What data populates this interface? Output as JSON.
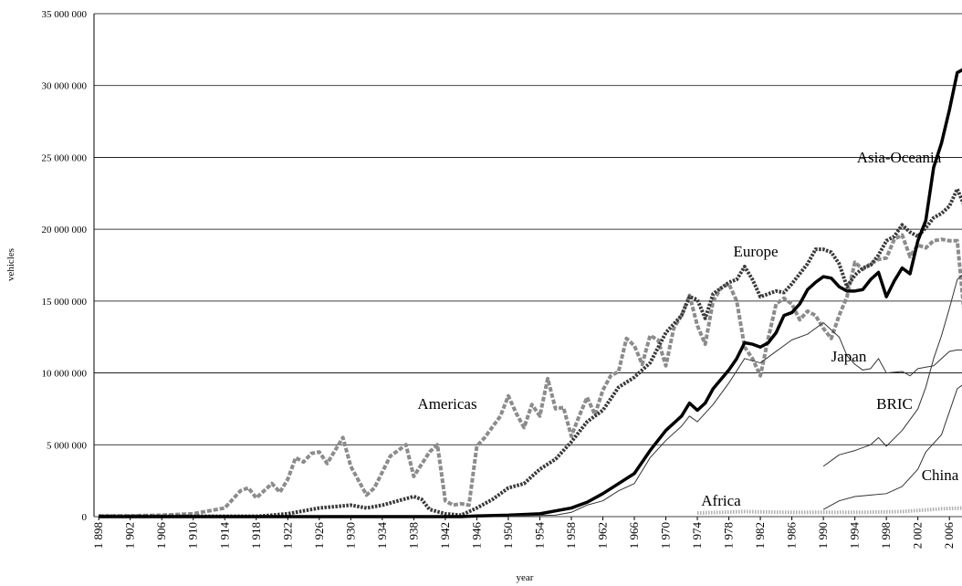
{
  "chart_data": {
    "type": "line",
    "xlabel": "year",
    "ylabel": "vehicles",
    "xlim": [
      1897.4,
      2007.6
    ],
    "ylim": [
      0,
      35000000
    ],
    "xticks": [
      {
        "value": 1898,
        "label": "1 898"
      },
      {
        "value": 1902,
        "label": "1 902"
      },
      {
        "value": 1906,
        "label": "1 906"
      },
      {
        "value": 1910,
        "label": "1 910"
      },
      {
        "value": 1914,
        "label": "1 914"
      },
      {
        "value": 1918,
        "label": "1 918"
      },
      {
        "value": 1922,
        "label": "1 922"
      },
      {
        "value": 1926,
        "label": "1 926"
      },
      {
        "value": 1930,
        "label": "1 930"
      },
      {
        "value": 1934,
        "label": "1 934"
      },
      {
        "value": 1938,
        "label": "1 938"
      },
      {
        "value": 1942,
        "label": "1 942"
      },
      {
        "value": 1946,
        "label": "1 946"
      },
      {
        "value": 1950,
        "label": "1 950"
      },
      {
        "value": 1954,
        "label": "1 954"
      },
      {
        "value": 1958,
        "label": "1 958"
      },
      {
        "value": 1962,
        "label": "1 962"
      },
      {
        "value": 1966,
        "label": "1 966"
      },
      {
        "value": 1970,
        "label": "1 970"
      },
      {
        "value": 1974,
        "label": "1 974"
      },
      {
        "value": 1978,
        "label": "1 978"
      },
      {
        "value": 1982,
        "label": "1 982"
      },
      {
        "value": 1986,
        "label": "1 986"
      },
      {
        "value": 1990,
        "label": "1 990"
      },
      {
        "value": 1994,
        "label": "1 994"
      },
      {
        "value": 1998,
        "label": "1 998"
      },
      {
        "value": 2002,
        "label": "2 002"
      },
      {
        "value": 2006,
        "label": "2 006"
      }
    ],
    "yticks": [
      {
        "value": 0,
        "label": "0"
      },
      {
        "value": 5000000,
        "label": "5 000 000"
      },
      {
        "value": 10000000,
        "label": "10 000 000"
      },
      {
        "value": 15000000,
        "label": "15 000 000"
      },
      {
        "value": 20000000,
        "label": "20 000 000"
      },
      {
        "value": 25000000,
        "label": "25 000 000"
      },
      {
        "value": 30000000,
        "label": "30 000 000"
      },
      {
        "value": 35000000,
        "label": "35 000 000"
      }
    ],
    "grid": true,
    "series": [
      {
        "name": "Americas",
        "color": "#8c8c8c",
        "width": 4,
        "x": [
          1898,
          1902,
          1906,
          1910,
          1912,
          1914,
          1916,
          1917,
          1918,
          1920,
          1921,
          1922,
          1923,
          1924,
          1925,
          1926,
          1927,
          1929,
          1930,
          1932,
          1933,
          1935,
          1937,
          1938,
          1940,
          1941,
          1942,
          1943,
          1944,
          1945,
          1946,
          1947,
          1949,
          1950,
          1951,
          1952,
          1953,
          1954,
          1955,
          1956,
          1957,
          1958,
          1959,
          1960,
          1961,
          1962,
          1963,
          1964,
          1965,
          1966,
          1967,
          1968,
          1969,
          1970,
          1971,
          1972,
          1973,
          1974,
          1975,
          1976,
          1977,
          1978,
          1979,
          1980,
          1981,
          1982,
          1983,
          1984,
          1985,
          1986,
          1987,
          1988,
          1989,
          1990,
          1991,
          1992,
          1993,
          1994,
          1995,
          1996,
          1997,
          1998,
          1999,
          2000,
          2001,
          2002,
          2003,
          2004,
          2005,
          2006,
          2007,
          2008
        ],
        "values": [
          50000,
          50000,
          100000,
          200000,
          400000,
          600000,
          1800000,
          2000000,
          1300000,
          2300000,
          1700000,
          2600000,
          4100000,
          3800000,
          4400000,
          4500000,
          3700000,
          5500000,
          3500000,
          1500000,
          2000000,
          4200000,
          5000000,
          2800000,
          4500000,
          5000000,
          1100000,
          800000,
          900000,
          800000,
          4900000,
          5500000,
          7000000,
          8400000,
          7200000,
          6200000,
          7800000,
          7000000,
          9600000,
          7500000,
          7600000,
          5600000,
          7000000,
          8300000,
          7100000,
          8800000,
          9800000,
          10100000,
          12400000,
          11900000,
          10600000,
          12600000,
          12300000,
          10500000,
          13100000,
          14000000,
          15400000,
          13300000,
          12000000,
          15000000,
          15900000,
          16200000,
          15000000,
          11800000,
          11000000,
          9800000,
          12400000,
          14800000,
          15200000,
          14800000,
          13700000,
          14300000,
          14000000,
          13100000,
          12400000,
          14000000,
          15300000,
          17700000,
          17200000,
          17600000,
          17900000,
          18000000,
          19300000,
          19600000,
          18100000,
          18900000,
          18700000,
          19200000,
          19300000,
          19200000,
          19200000,
          13500000
        ]
      },
      {
        "name": "Europe",
        "color": "#3a3a3a",
        "width": 4,
        "x": [
          1898,
          1918,
          1920,
          1922,
          1924,
          1926,
          1928,
          1930,
          1932,
          1934,
          1936,
          1938,
          1939,
          1940,
          1942,
          1944,
          1946,
          1948,
          1950,
          1952,
          1954,
          1956,
          1958,
          1960,
          1962,
          1964,
          1966,
          1968,
          1970,
          1972,
          1973,
          1974,
          1975,
          1976,
          1978,
          1979,
          1980,
          1981,
          1982,
          1984,
          1985,
          1986,
          1988,
          1989,
          1990,
          1991,
          1992,
          1993,
          1994,
          1995,
          1996,
          1997,
          1998,
          1999,
          2000,
          2001,
          2002,
          2003,
          2004,
          2005,
          2006,
          2007,
          2008
        ],
        "values": [
          20000,
          20000,
          100000,
          200000,
          400000,
          600000,
          700000,
          800000,
          600000,
          800000,
          1100000,
          1400000,
          1200000,
          500000,
          200000,
          100000,
          600000,
          1200000,
          2000000,
          2300000,
          3300000,
          4000000,
          5200000,
          6600000,
          7400000,
          9000000,
          9700000,
          10700000,
          12800000,
          14000000,
          15300000,
          15100000,
          13800000,
          15500000,
          16300000,
          16500000,
          17400000,
          16500000,
          15300000,
          15700000,
          15600000,
          16200000,
          17600000,
          18600000,
          18600000,
          18400000,
          17600000,
          16000000,
          16800000,
          17300000,
          17500000,
          18200000,
          19200000,
          19500000,
          20300000,
          19800000,
          19500000,
          20100000,
          20800000,
          21100000,
          21600000,
          22800000,
          21500000
        ]
      },
      {
        "name": "Asia-Oceania",
        "color": "#000000",
        "width": 3.5,
        "x": [
          1898,
          1944,
          1946,
          1950,
          1954,
          1956,
          1958,
          1960,
          1962,
          1964,
          1966,
          1968,
          1970,
          1972,
          1973,
          1974,
          1975,
          1976,
          1978,
          1979,
          1980,
          1981,
          1982,
          1983,
          1984,
          1985,
          1986,
          1987,
          1988,
          1989,
          1990,
          1991,
          1992,
          1993,
          1994,
          1995,
          1996,
          1997,
          1998,
          1999,
          2000,
          2001,
          2002,
          2003,
          2004,
          2005,
          2006,
          2007,
          2008
        ],
        "values": [
          0,
          0,
          50000,
          100000,
          200000,
          400000,
          600000,
          1000000,
          1600000,
          2300000,
          3000000,
          4600000,
          6000000,
          7000000,
          7900000,
          7400000,
          7900000,
          8900000,
          10200000,
          11000000,
          12100000,
          12000000,
          11800000,
          12100000,
          12800000,
          14000000,
          14200000,
          14800000,
          15800000,
          16300000,
          16700000,
          16600000,
          16000000,
          15700000,
          15700000,
          15800000,
          16500000,
          17000000,
          15300000,
          16400000,
          17300000,
          16900000,
          19200000,
          20600000,
          24300000,
          26000000,
          28300000,
          30900000,
          31200000
        ]
      },
      {
        "name": "Japan",
        "color": "#333333",
        "width": 1,
        "x": [
          1950,
          1956,
          1958,
          1960,
          1962,
          1964,
          1966,
          1968,
          1970,
          1972,
          1973,
          1974,
          1976,
          1978,
          1980,
          1982,
          1984,
          1986,
          1988,
          1990,
          1992,
          1993,
          1994,
          1995,
          1996,
          1997,
          1998,
          2000,
          2001,
          2002,
          2004,
          2006,
          2007,
          2008
        ],
        "values": [
          50000,
          100000,
          300000,
          800000,
          1100000,
          1800000,
          2300000,
          4100000,
          5300000,
          6300000,
          7000000,
          6600000,
          7800000,
          9300000,
          11000000,
          10700000,
          11500000,
          12300000,
          12700000,
          13500000,
          12500000,
          11200000,
          10600000,
          10200000,
          10300000,
          11000000,
          10000000,
          10100000,
          9800000,
          10300000,
          10500000,
          11500000,
          11600000,
          11600000
        ]
      },
      {
        "name": "BRIC",
        "color": "#333333",
        "width": 1,
        "x": [
          1990,
          1992,
          1994,
          1996,
          1997,
          1998,
          2000,
          2002,
          2003,
          2004,
          2005,
          2006,
          2007,
          2008
        ],
        "values": [
          3500000,
          4300000,
          4600000,
          5000000,
          5500000,
          4900000,
          6000000,
          7500000,
          9000000,
          11000000,
          12600000,
          14500000,
          16500000,
          17000000
        ]
      },
      {
        "name": "China",
        "color": "#333333",
        "width": 1,
        "x": [
          1990,
          1992,
          1994,
          1996,
          1998,
          2000,
          2002,
          2003,
          2004,
          2005,
          2006,
          2007,
          2008
        ],
        "values": [
          500000,
          1100000,
          1400000,
          1500000,
          1600000,
          2100000,
          3300000,
          4500000,
          5100000,
          5700000,
          7300000,
          8900000,
          9300000
        ]
      },
      {
        "name": "Africa",
        "color": "#b0b0b0",
        "width": 4,
        "x": [
          1974,
          1980,
          1985,
          1990,
          1995,
          2000,
          2005,
          2008
        ],
        "values": [
          250000,
          350000,
          300000,
          300000,
          300000,
          350000,
          550000,
          600000
        ]
      }
    ]
  }
}
